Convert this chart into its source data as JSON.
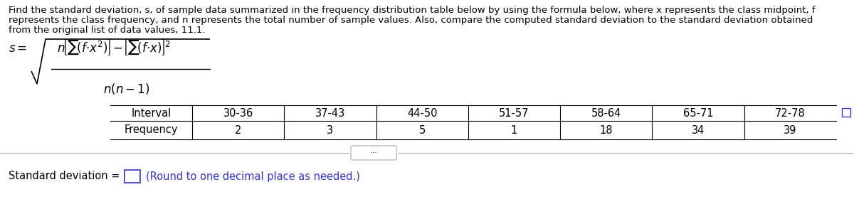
{
  "title_line1": "Find the standard deviation, s, of sample data summarized in the frequency distribution table below by using the formula below, where x represents the class midpoint, f",
  "title_line2": "represents the class frequency, and n represents the total number of sample values. Also, compare the computed standard deviation to the standard deviation obtained",
  "title_line3": "from the original list of data values, 11.1.",
  "intervals": [
    "30-36",
    "37-43",
    "44-50",
    "51-57",
    "58-64",
    "65-71",
    "72-78"
  ],
  "frequencies": [
    "2",
    "3",
    "5",
    "1",
    "18",
    "34",
    "39"
  ],
  "row_label1": "Interval",
  "row_label2": "Frequency",
  "std_dev_label": "Standard deviation =",
  "std_dev_hint": "(Round to one decimal place as needed.)",
  "bg_color": "#ffffff",
  "text_color": "#000000",
  "blue_color": "#3333cc",
  "title_fontsize": 9.5,
  "table_fontsize": 10.5,
  "formula_fontsize": 12
}
